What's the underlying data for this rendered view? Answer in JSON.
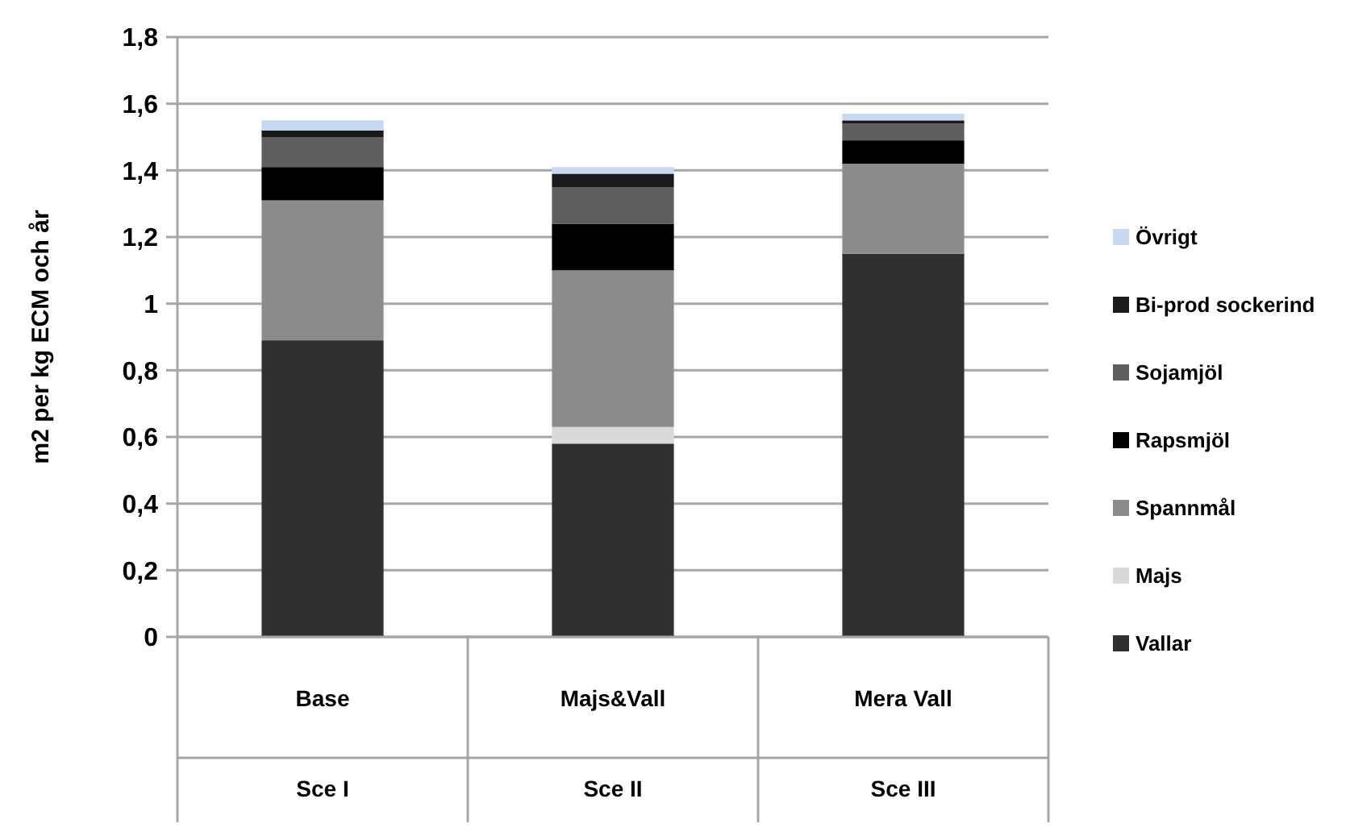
{
  "chart_data": {
    "type": "bar",
    "stacked": true,
    "ylabel": "m2 per kg ECM och år",
    "categories": [
      "Base",
      "Majs&Vall",
      "Mera Vall"
    ],
    "annotations": [
      "Sce I",
      "Sce II",
      "Sce III"
    ],
    "series": [
      {
        "name": "Vallar",
        "color": "#303030",
        "values": [
          0.89,
          0.58,
          1.15
        ]
      },
      {
        "name": "Majs",
        "color": "#d9d9d9",
        "values": [
          0,
          0.05,
          0
        ]
      },
      {
        "name": "Spannmål",
        "color": "#8c8c8c",
        "values": [
          0.42,
          0.47,
          0.27
        ]
      },
      {
        "name": "Rapsmjöl",
        "color": "#000000",
        "values": [
          0.1,
          0.14,
          0.07
        ]
      },
      {
        "name": "Sojamjöl",
        "color": "#5e5e5e",
        "values": [
          0.09,
          0.11,
          0.05
        ]
      },
      {
        "name": "Bi-prod sockerind",
        "color": "#1a1a1a",
        "values": [
          0.02,
          0.04,
          0.01
        ]
      },
      {
        "name": "Övrigt",
        "color": "#c6d9f1",
        "values": [
          0.03,
          0.02,
          0.02
        ]
      }
    ],
    "ylim": [
      0,
      1.8
    ],
    "yticks": [
      0,
      {
        "value": 0.2,
        "label": "0,2"
      },
      {
        "value": 0.4,
        "label": "0,4"
      },
      {
        "value": 0.6,
        "label": "0,6"
      },
      {
        "value": 0.8,
        "label": "0,8"
      },
      1,
      {
        "value": 1.2,
        "label": "1,2"
      },
      {
        "value": 1.4,
        "label": "1,4"
      },
      {
        "value": 1.6,
        "label": "1,6"
      },
      {
        "value": 1.8,
        "label": "1,8"
      }
    ],
    "grid": "y",
    "legend": "right"
  }
}
